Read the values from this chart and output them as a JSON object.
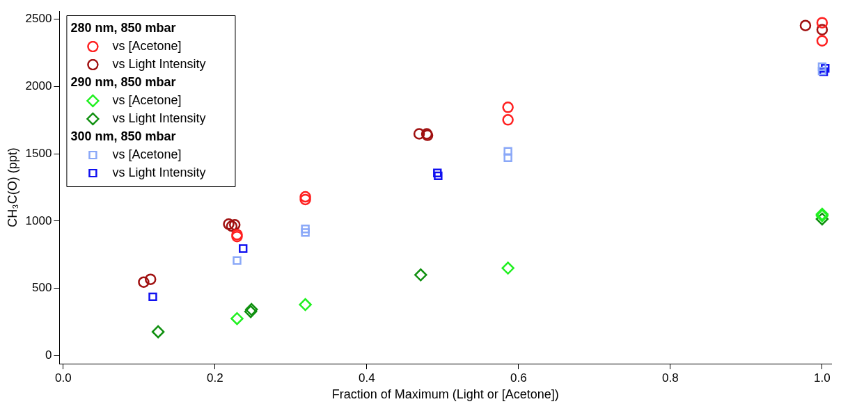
{
  "chart_data": {
    "type": "scatter",
    "xlabel": "Fraction of Maximum (Light or [Acetone])",
    "ylabel": "CH₃C(O) (ppt)",
    "xlim": [
      -0.005,
      1.012
    ],
    "xticks": [
      {
        "value": 0,
        "label": "0.0"
      },
      0.2,
      0.4,
      0.6,
      0.8,
      {
        "value": 1,
        "label": "1.0"
      }
    ],
    "ylim": [
      -60,
      2560
    ],
    "yticks": [
      0,
      500,
      1000,
      1500,
      2000,
      2500
    ],
    "grid": false,
    "legend": "top left",
    "annotations": [
      "280 nm, 850 mbar",
      "290 nm, 850 mbar",
      "300 nm, 850 mbar"
    ],
    "series": [
      {
        "name": "vs [Acetone]",
        "color": "#ff2020",
        "marker": "circle",
        "x": [
          0.229,
          0.229,
          0.319,
          0.319,
          0.586,
          0.586,
          1.0,
          1.0
        ],
        "values": [
          899,
          885,
          1180,
          1160,
          1845,
          1752,
          2474,
          2339
        ]
      },
      {
        "name": "vs Light Intensity",
        "color": "#a01010",
        "marker": "circle",
        "x": [
          0.106,
          0.115,
          0.218,
          0.222,
          0.226,
          0.469,
          0.479,
          0.48,
          0.978,
          1.0
        ],
        "values": [
          546,
          567,
          977,
          962,
          972,
          1648,
          1648,
          1637,
          2453,
          2422
        ]
      },
      {
        "name": "vs [Acetone]",
        "color": "#20f020",
        "marker": "diamond",
        "x": [
          0.229,
          0.319,
          0.586,
          1.0,
          1.0
        ],
        "values": [
          275,
          379,
          650,
          1040,
          1051
        ]
      },
      {
        "name": "vs Light Intensity",
        "color": "#109010",
        "marker": "diamond",
        "x": [
          0.125,
          0.247,
          0.248,
          0.471,
          1.0
        ],
        "values": [
          177,
          327,
          343,
          600,
          1015
        ]
      },
      {
        "name": "vs [Acetone]",
        "color": "#8aa8f8",
        "marker": "square",
        "x": [
          0.229,
          0.319,
          0.319,
          0.586,
          0.586,
          1.0,
          1.0
        ],
        "values": [
          707,
          941,
          915,
          1518,
          1471,
          2115,
          2147
        ]
      },
      {
        "name": "vs Light Intensity",
        "color": "#1010f0",
        "marker": "square",
        "x": [
          0.118,
          0.237,
          0.493,
          0.494,
          1.004,
          1.002
        ],
        "values": [
          437,
          795,
          1357,
          1336,
          2135,
          2110
        ]
      }
    ]
  }
}
